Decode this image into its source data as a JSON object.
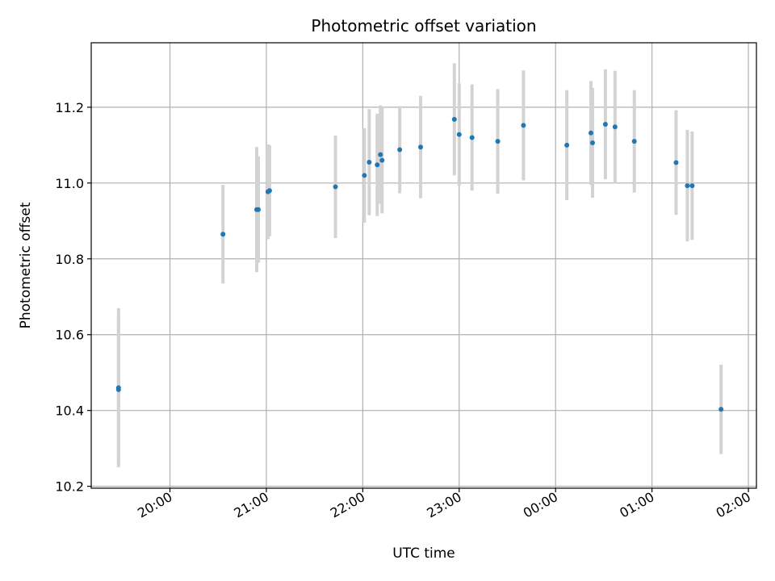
{
  "chart_data": {
    "type": "scatter",
    "title": "Photometric offset variation",
    "xlabel": "UTC time",
    "ylabel": "Photometric offset",
    "ylim": [
      10.195,
      11.37
    ],
    "xlim": [
      "19:11",
      "02:05"
    ],
    "grid": true,
    "ytick_values": [
      10.2,
      10.4,
      10.6,
      10.8,
      11.0,
      11.2
    ],
    "ytick_labels": [
      "10.2",
      "10.4",
      "10.6",
      "10.8",
      "11.0",
      "11.2"
    ],
    "xtick_values": [
      "20:00",
      "21:00",
      "22:00",
      "23:00",
      "00:00",
      "01:00",
      "02:00"
    ],
    "xtick_labels": [
      "20:00",
      "21:00",
      "22:00",
      "23:00",
      "00:00",
      "01:00",
      "02:00"
    ],
    "colors": {
      "points": "#1f77b4",
      "errorbars": "#d3d3d3",
      "grid": "#b0b0b0"
    },
    "series": [
      {
        "points": [
          {
            "x": "19:28",
            "y": 10.455,
            "err": 0.195
          },
          {
            "x": "19:28",
            "y": 10.46,
            "err": 0.21
          },
          {
            "x": "20:33",
            "y": 10.865,
            "err": 0.13
          },
          {
            "x": "20:54",
            "y": 10.93,
            "err": 0.165
          },
          {
            "x": "20:55",
            "y": 10.93,
            "err": 0.14
          },
          {
            "x": "21:01",
            "y": 10.977,
            "err": 0.125
          },
          {
            "x": "21:02",
            "y": 10.98,
            "err": 0.12
          },
          {
            "x": "21:43",
            "y": 10.99,
            "err": 0.135
          },
          {
            "x": "22:01",
            "y": 11.02,
            "err": 0.125
          },
          {
            "x": "22:04",
            "y": 11.055,
            "err": 0.14
          },
          {
            "x": "22:09",
            "y": 11.048,
            "err": 0.135
          },
          {
            "x": "22:11",
            "y": 11.075,
            "err": 0.13
          },
          {
            "x": "22:12",
            "y": 11.06,
            "err": 0.14
          },
          {
            "x": "22:23",
            "y": 11.088,
            "err": 0.115
          },
          {
            "x": "22:36",
            "y": 11.095,
            "err": 0.135
          },
          {
            "x": "22:57",
            "y": 11.168,
            "err": 0.148
          },
          {
            "x": "23:00",
            "y": 11.128,
            "err": 0.135
          },
          {
            "x": "23:08",
            "y": 11.12,
            "err": 0.14
          },
          {
            "x": "23:24",
            "y": 11.11,
            "err": 0.138
          },
          {
            "x": "23:40",
            "y": 11.152,
            "err": 0.145
          },
          {
            "x": "00:07",
            "y": 11.1,
            "err": 0.145
          },
          {
            "x": "00:22",
            "y": 11.132,
            "err": 0.137
          },
          {
            "x": "00:23",
            "y": 11.106,
            "err": 0.145
          },
          {
            "x": "00:31",
            "y": 11.155,
            "err": 0.145
          },
          {
            "x": "00:37",
            "y": 11.148,
            "err": 0.148
          },
          {
            "x": "00:49",
            "y": 11.11,
            "err": 0.135
          },
          {
            "x": "01:15",
            "y": 11.054,
            "err": 0.138
          },
          {
            "x": "01:22",
            "y": 10.993,
            "err": 0.147
          },
          {
            "x": "01:25",
            "y": 10.993,
            "err": 0.143
          },
          {
            "x": "01:43",
            "y": 10.403,
            "err": 0.118
          }
        ]
      }
    ]
  }
}
